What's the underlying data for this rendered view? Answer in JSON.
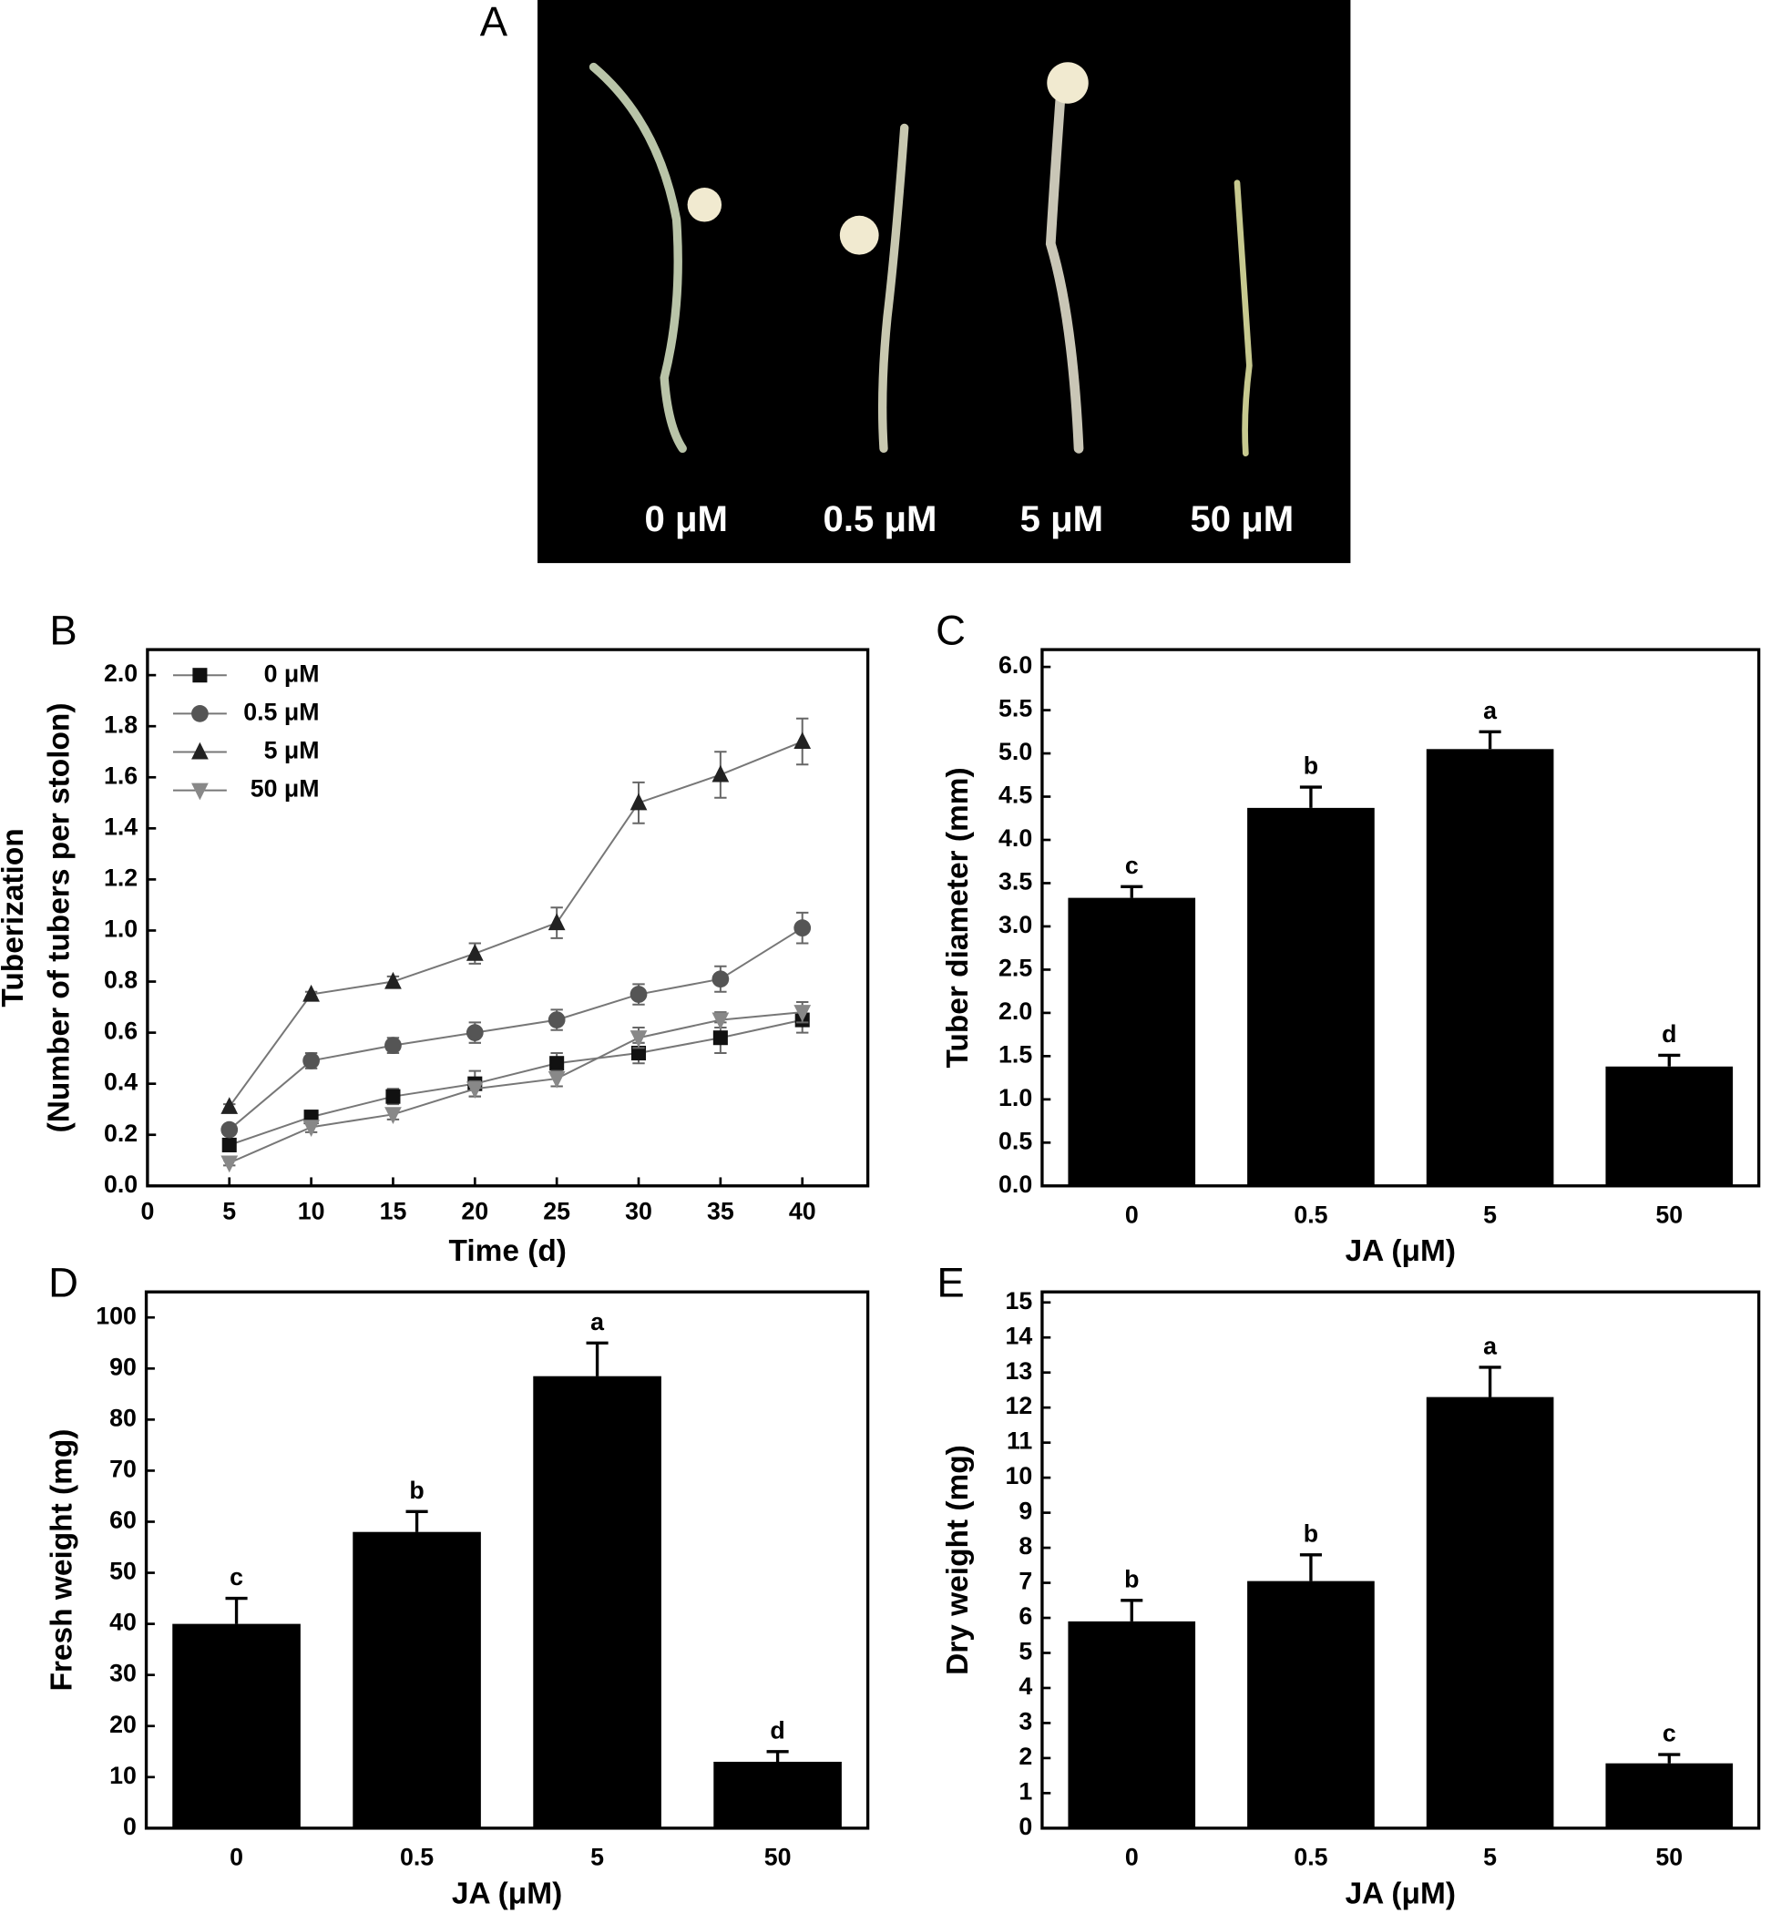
{
  "panel_a": {
    "label": "A",
    "doses": [
      "0 μM",
      "0.5 μM",
      "5 μM",
      "50 μM"
    ]
  },
  "chart_data": [
    {
      "type": "line",
      "label": "B",
      "y_label": [
        "Tuberization",
        "(Number of tubers per stolon)"
      ],
      "x_label": "Time (d)",
      "x": [
        5,
        10,
        15,
        20,
        25,
        30,
        35,
        40
      ],
      "series": [
        {
          "name": "0 μM",
          "color": "#111111",
          "marker": "square",
          "values": [
            0.16,
            0.27,
            0.35,
            0.4,
            0.48,
            0.52,
            0.58,
            0.65
          ],
          "errors": [
            0.02,
            0.02,
            0.03,
            0.05,
            0.04,
            0.04,
            0.06,
            0.05
          ]
        },
        {
          "name": "0.5 μM",
          "color": "#555555",
          "marker": "circle",
          "values": [
            0.22,
            0.49,
            0.55,
            0.6,
            0.65,
            0.75,
            0.81,
            1.01
          ],
          "errors": [
            0.02,
            0.03,
            0.03,
            0.04,
            0.04,
            0.04,
            0.05,
            0.06
          ]
        },
        {
          "name": "5 μM",
          "color": "#222222",
          "marker": "triangle-up",
          "values": [
            0.31,
            0.75,
            0.8,
            0.91,
            1.03,
            1.5,
            1.61,
            1.74
          ],
          "errors": [
            0.01,
            0.01,
            0.02,
            0.04,
            0.06,
            0.08,
            0.09,
            0.09
          ]
        },
        {
          "name": "50 μM",
          "color": "#888888",
          "marker": "triangle-down",
          "values": [
            0.09,
            0.23,
            0.28,
            0.38,
            0.42,
            0.58,
            0.65,
            0.68
          ],
          "errors": [
            0.01,
            0.02,
            0.02,
            0.03,
            0.03,
            0.04,
            0.03,
            0.04
          ]
        }
      ],
      "xlim": [
        0,
        44
      ],
      "ylim": [
        0,
        2.1
      ],
      "xticks": [
        0,
        5,
        10,
        15,
        20,
        25,
        30,
        35,
        40
      ],
      "yticks": [
        {
          "value": 0,
          "label": "0.0"
        },
        0.2,
        0.4,
        0.6,
        0.8,
        {
          "value": 1,
          "label": "1.0"
        },
        1.2,
        1.4,
        1.6,
        1.8,
        {
          "value": 2,
          "label": "2.0"
        }
      ],
      "legend": "upper left"
    },
    {
      "type": "bar",
      "label": "C",
      "y_label": "Tuber diameter (mm)",
      "x_label": "JA (μM)",
      "categories": [
        "0",
        "0.5",
        "5",
        "50"
      ],
      "values": [
        3.33,
        4.37,
        5.05,
        1.38
      ],
      "errors": [
        0.13,
        0.24,
        0.2,
        0.13
      ],
      "annotations": [
        "c",
        "b",
        "a",
        "d"
      ],
      "color": "#000000",
      "ylim": [
        0,
        6.2
      ],
      "yticks": [
        {
          "value": 0,
          "label": "0.0"
        },
        0.5,
        {
          "value": 1,
          "label": "1.0"
        },
        1.5,
        {
          "value": 2,
          "label": "2.0"
        },
        2.5,
        {
          "value": 3,
          "label": "3.0"
        },
        3.5,
        {
          "value": 4,
          "label": "4.0"
        },
        4.5,
        {
          "value": 5,
          "label": "5.0"
        },
        5.5,
        {
          "value": 6,
          "label": "6.0"
        }
      ]
    },
    {
      "type": "bar",
      "label": "D",
      "y_label": "Fresh weight (mg)",
      "x_label": "JA (μM)",
      "categories": [
        "0",
        "0.5",
        "5",
        "50"
      ],
      "values": [
        40,
        58,
        88.5,
        13
      ],
      "errors": [
        5,
        4,
        6.5,
        2
      ],
      "annotations": [
        "c",
        "b",
        "a",
        "d"
      ],
      "color": "#000000",
      "ylim": [
        0,
        105
      ],
      "yticks": [
        0,
        10,
        20,
        30,
        40,
        50,
        60,
        70,
        80,
        90,
        100
      ]
    },
    {
      "type": "bar",
      "label": "E",
      "y_label": "Dry weight (mg)",
      "x_label": "JA (μM)",
      "categories": [
        "0",
        "0.5",
        "5",
        "50"
      ],
      "values": [
        5.9,
        7.05,
        12.3,
        1.85
      ],
      "errors": [
        0.6,
        0.75,
        0.85,
        0.25
      ],
      "annotations": [
        "b",
        "b",
        "a",
        "c"
      ],
      "color": "#000000",
      "ylim": [
        0,
        15.3
      ],
      "yticks": [
        0,
        1,
        2,
        3,
        4,
        5,
        6,
        7,
        8,
        9,
        10,
        11,
        12,
        13,
        14,
        15
      ]
    }
  ]
}
